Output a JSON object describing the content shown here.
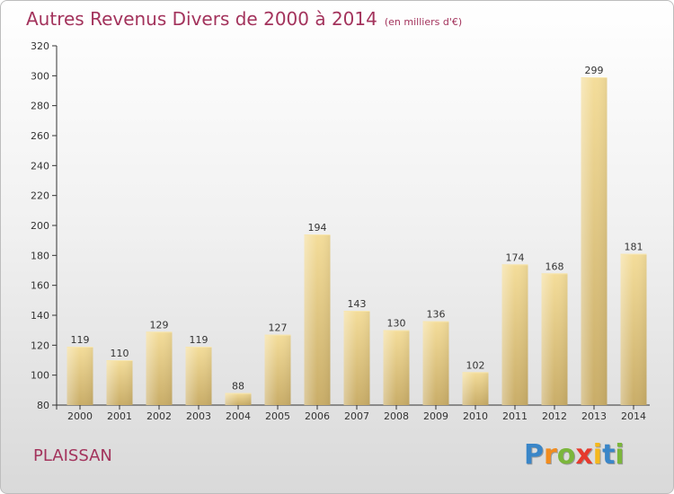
{
  "title": {
    "main": "Autres Revenus Divers de 2000 à 2014",
    "sub": "(en milliers d'€)"
  },
  "commune": "PLAISSAN",
  "logo": {
    "letters": [
      "P",
      "r",
      "o",
      "x",
      "i",
      "t",
      "i"
    ],
    "colors": [
      "#3a86c8",
      "#f28c1e",
      "#7bb63b",
      "#e63a2e",
      "#f5b81c",
      "#3a86c8",
      "#7bb63b"
    ]
  },
  "colors": {
    "title": "#a3335c",
    "bar_light": "#f4dd9a",
    "bar_dark": "#c9ad68",
    "axis": "#333333"
  },
  "chart_data": {
    "type": "bar",
    "categories": [
      "2000",
      "2001",
      "2002",
      "2003",
      "2004",
      "2005",
      "2006",
      "2007",
      "2008",
      "2009",
      "2010",
      "2011",
      "2012",
      "2013",
      "2014"
    ],
    "values": [
      119,
      110,
      129,
      119,
      88,
      127,
      194,
      143,
      130,
      136,
      102,
      174,
      168,
      299,
      181
    ],
    "data_labels": [
      "119",
      "110",
      "129",
      "119",
      "88",
      "127",
      "194",
      "143",
      "130",
      "136",
      "102",
      "174",
      "168",
      "299",
      "181"
    ],
    "title": "Autres Revenus Divers de 2000 à 2014",
    "xlabel": "",
    "ylabel": "",
    "ylim": [
      80,
      320
    ],
    "yticks": [
      "80",
      "100",
      "120",
      "140",
      "160",
      "180",
      "200",
      "220",
      "240",
      "260",
      "280",
      "300",
      "320"
    ],
    "grid": false
  }
}
